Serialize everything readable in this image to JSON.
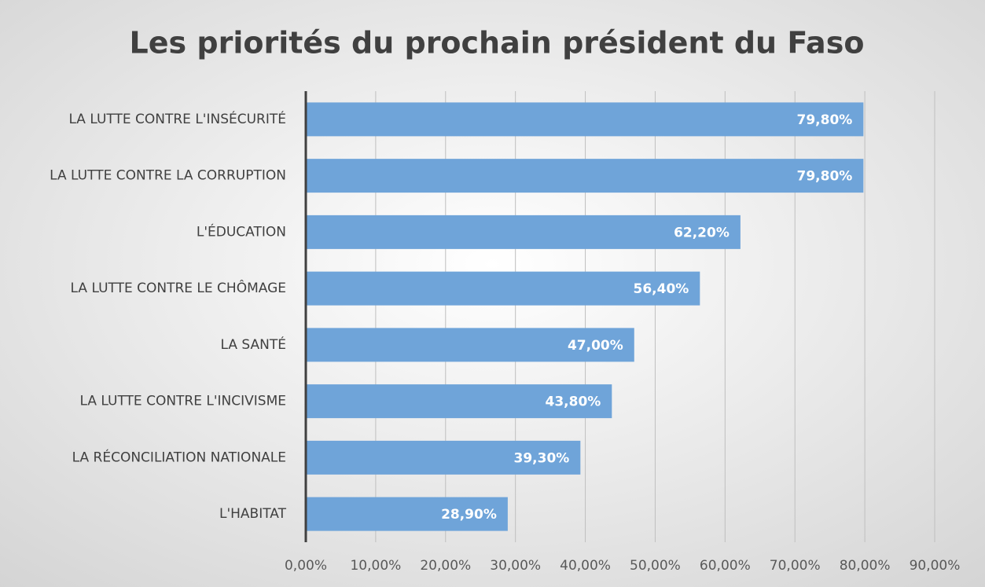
{
  "chart_data": {
    "type": "bar",
    "orientation": "horizontal",
    "title": "Les priorités du prochain président du Faso",
    "categories": [
      "LA LUTTE CONTRE L'INSÉCURITÉ",
      "LA LUTTE CONTRE LA CORRUPTION",
      "L'ÉDUCATION",
      "LA LUTTE CONTRE LE CHÔMAGE",
      "LA SANTÉ",
      "LA LUTTE CONTRE L'INCIVISME",
      "LA RÉCONCILIATION NATIONALE",
      "L'HABITAT"
    ],
    "values": [
      79.8,
      79.8,
      62.2,
      56.4,
      47.0,
      43.8,
      39.3,
      28.9
    ],
    "value_labels": [
      "79,80%",
      "79,80%",
      "62,20%",
      "56,40%",
      "47,00%",
      "43,80%",
      "39,30%",
      "28,90%"
    ],
    "color": "#6fa4d9",
    "xlim": [
      0,
      90
    ],
    "xticks": [
      {
        "value": 0,
        "label": "0,00%"
      },
      {
        "value": 10,
        "label": "10,00%"
      },
      {
        "value": 20,
        "label": "20,00%"
      },
      {
        "value": 30,
        "label": "30,00%"
      },
      {
        "value": 40,
        "label": "40,00%"
      },
      {
        "value": 50,
        "label": "50,00%"
      },
      {
        "value": 60,
        "label": "60,00%"
      },
      {
        "value": 70,
        "label": "70,00%"
      },
      {
        "value": 80,
        "label": "80,00%"
      },
      {
        "value": 90,
        "label": "90,00%"
      }
    ],
    "grid": true
  }
}
